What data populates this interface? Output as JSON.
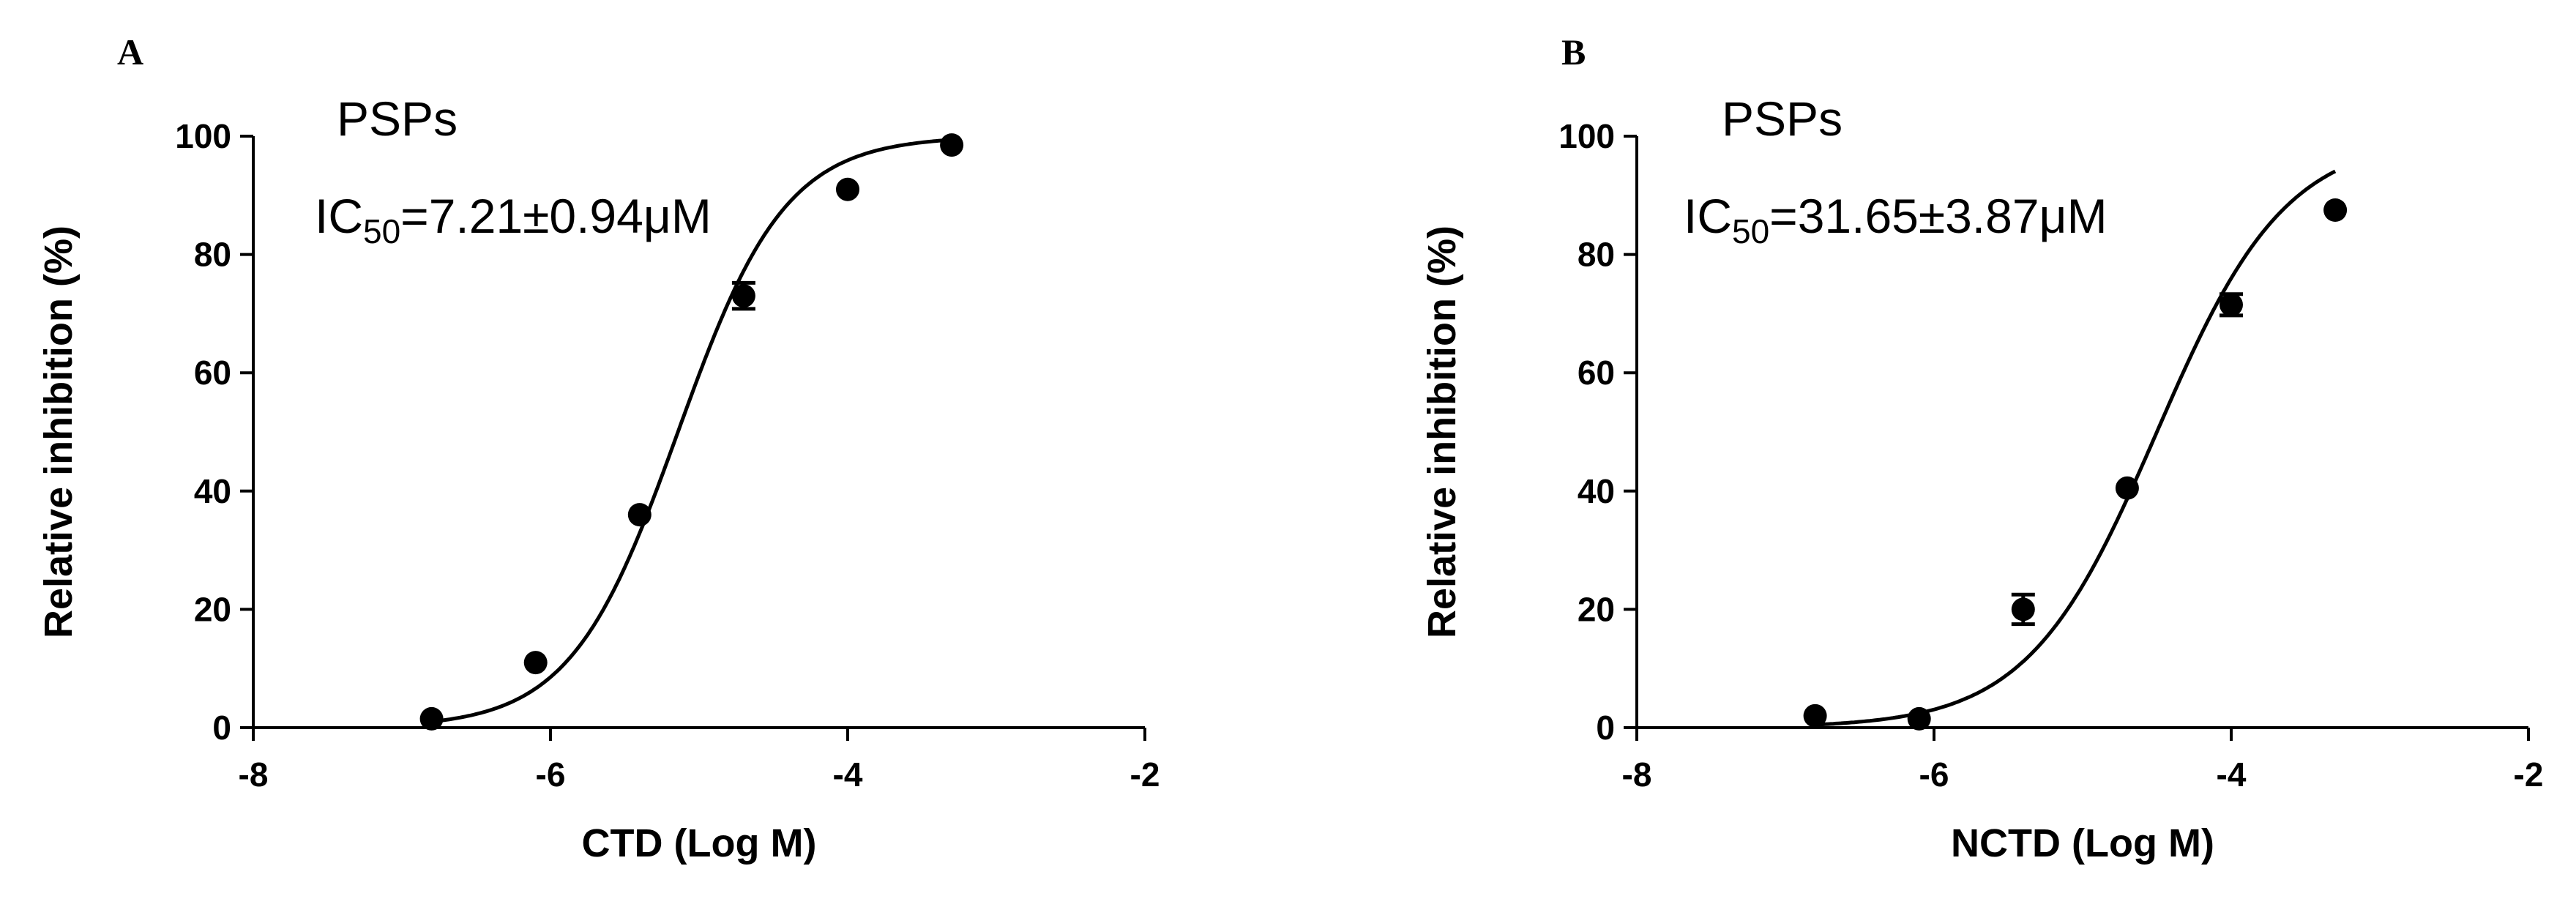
{
  "chart_data": [
    {
      "panel_label": "A",
      "type": "scatter",
      "annotations": {
        "compound": "PSPs",
        "ic50_prefix": "IC",
        "ic50_sub": "50",
        "ic50_value": "=7.21±0.94μM"
      },
      "xlabel": "CTD (Log M)",
      "ylabel": "Relative inhibition (%)",
      "xlim": [
        -8,
        -2
      ],
      "ylim": [
        0,
        100
      ],
      "xticks": [
        -8,
        -6,
        -4,
        -2
      ],
      "xtick_labels": [
        "-8",
        "-6",
        "-4",
        "-2"
      ],
      "yticks": [
        0,
        20,
        40,
        60,
        80,
        100
      ],
      "ytick_labels": [
        "0",
        "20",
        "40",
        "60",
        "80",
        "100"
      ],
      "points": [
        {
          "x": -6.8,
          "y": 1.5,
          "err": 0.5
        },
        {
          "x": -6.1,
          "y": 11,
          "err": 0.8
        },
        {
          "x": -5.4,
          "y": 36,
          "err": 1.0
        },
        {
          "x": -4.7,
          "y": 73,
          "err": 2.2
        },
        {
          "x": -4.0,
          "y": 91,
          "err": 0.8
        },
        {
          "x": -3.3,
          "y": 98.5,
          "err": 0.5
        }
      ],
      "fit": {
        "model": "sigmoid",
        "bottom": 0,
        "top": 100,
        "logIC50": -5.142,
        "hill": 1.2
      },
      "grid": false
    },
    {
      "panel_label": "B",
      "type": "scatter",
      "annotations": {
        "compound": "PSPs",
        "ic50_prefix": "IC",
        "ic50_sub": "50",
        "ic50_value": "=31.65±3.87μM"
      },
      "xlabel": "NCTD (Log M)",
      "ylabel": "Relative inhibition (%)",
      "xlim": [
        -8,
        -2
      ],
      "ylim": [
        0,
        100
      ],
      "xticks": [
        -8,
        -6,
        -4,
        -2
      ],
      "xtick_labels": [
        "-8",
        "-6",
        "-4",
        "-2"
      ],
      "yticks": [
        0,
        20,
        40,
        60,
        80,
        100
      ],
      "ytick_labels": [
        "0",
        "20",
        "40",
        "60",
        "80",
        "100"
      ],
      "points": [
        {
          "x": -6.8,
          "y": 2,
          "err": 0.5
        },
        {
          "x": -6.1,
          "y": 1.5,
          "err": 0.5
        },
        {
          "x": -5.4,
          "y": 20,
          "err": 2.5
        },
        {
          "x": -4.7,
          "y": 40.5,
          "err": 0.8
        },
        {
          "x": -4.0,
          "y": 71.5,
          "err": 1.8
        },
        {
          "x": -3.3,
          "y": 87.5,
          "err": 0.5
        }
      ],
      "fit": {
        "model": "sigmoid",
        "bottom": 0,
        "top": 100,
        "logIC50": -4.5,
        "hill": 1.0
      },
      "grid": false
    }
  ]
}
